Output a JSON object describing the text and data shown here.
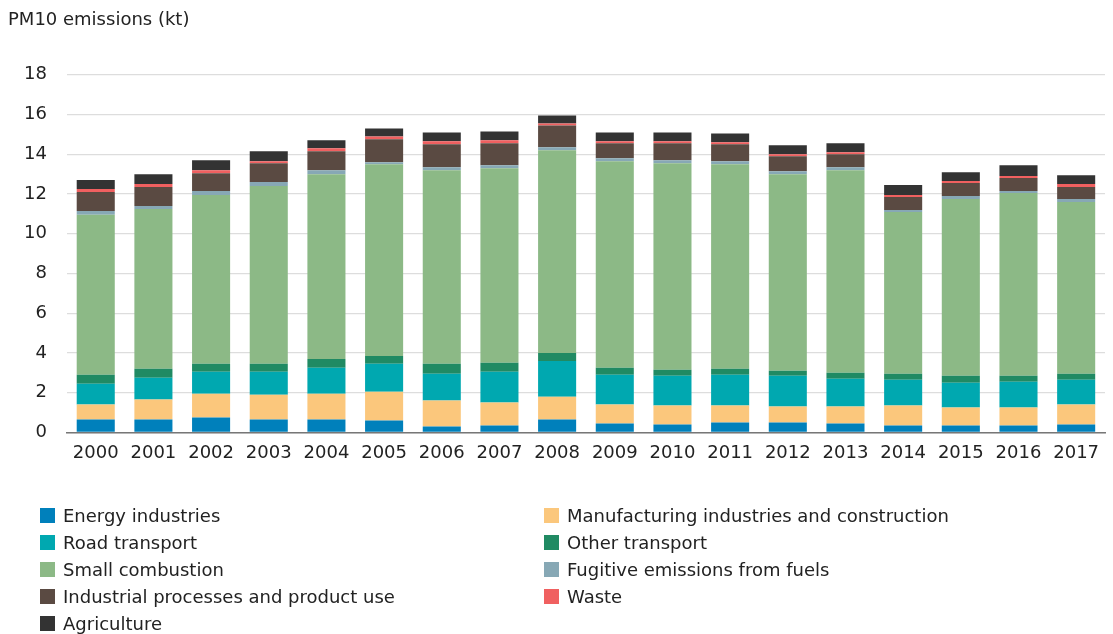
{
  "chart_data": {
    "type": "bar",
    "stacked": true,
    "ylabel": "PM10 emissions (kt)",
    "categories": [
      "2000",
      "2001",
      "2002",
      "2003",
      "2004",
      "2005",
      "2006",
      "2007",
      "2008",
      "2009",
      "2010",
      "2011",
      "2012",
      "2013",
      "2014",
      "2015",
      "2016",
      "2017"
    ],
    "ylim": [
      0,
      18
    ],
    "yticks": [
      0,
      2,
      4,
      6,
      8,
      10,
      12,
      14,
      16,
      18
    ],
    "grid": "y",
    "legend": "bottom",
    "series": [
      {
        "name": "Energy industries",
        "color": "#0080bb",
        "values": [
          0.65,
          0.65,
          0.75,
          0.65,
          0.65,
          0.6,
          0.3,
          0.35,
          0.65,
          0.45,
          0.4,
          0.5,
          0.5,
          0.45,
          0.35,
          0.35,
          0.35,
          0.4
        ]
      },
      {
        "name": "Manufacturing industries and construction",
        "color": "#fbc77c",
        "values": [
          0.75,
          1.0,
          1.2,
          1.25,
          1.3,
          1.45,
          1.3,
          1.15,
          1.15,
          0.95,
          0.95,
          0.85,
          0.8,
          0.85,
          1.0,
          0.9,
          0.9,
          1.0
        ]
      },
      {
        "name": "Road transport",
        "color": "#00a8b0",
        "values": [
          1.05,
          1.1,
          1.1,
          1.15,
          1.3,
          1.4,
          1.35,
          1.55,
          1.8,
          1.5,
          1.5,
          1.55,
          1.55,
          1.4,
          1.3,
          1.25,
          1.3,
          1.25
        ]
      },
      {
        "name": "Other transport",
        "color": "#208a63",
        "values": [
          0.45,
          0.45,
          0.4,
          0.4,
          0.45,
          0.4,
          0.5,
          0.45,
          0.4,
          0.35,
          0.3,
          0.3,
          0.25,
          0.3,
          0.3,
          0.35,
          0.3,
          0.3
        ]
      },
      {
        "name": "Small combustion",
        "color": "#8cb986",
        "values": [
          8.05,
          8.05,
          8.5,
          8.95,
          9.3,
          9.65,
          9.75,
          9.8,
          10.2,
          10.4,
          10.4,
          10.3,
          9.9,
          10.2,
          8.15,
          8.9,
          9.2,
          8.65
        ]
      },
      {
        "name": "Fugitive emissions from fuels",
        "color": "#87a8b5",
        "values": [
          0.2,
          0.15,
          0.2,
          0.2,
          0.2,
          0.1,
          0.15,
          0.15,
          0.15,
          0.15,
          0.15,
          0.15,
          0.15,
          0.15,
          0.1,
          0.15,
          0.1,
          0.15
        ]
      },
      {
        "name": "Industrial processes and product use",
        "color": "#5a4a42",
        "values": [
          0.95,
          0.95,
          0.9,
          0.95,
          0.95,
          1.15,
          1.15,
          1.1,
          1.1,
          0.75,
          0.85,
          0.85,
          0.75,
          0.65,
          0.65,
          0.65,
          0.65,
          0.6
        ]
      },
      {
        "name": "Waste",
        "color": "#f06060",
        "values": [
          0.15,
          0.15,
          0.15,
          0.1,
          0.15,
          0.15,
          0.15,
          0.15,
          0.1,
          0.1,
          0.1,
          0.1,
          0.1,
          0.1,
          0.1,
          0.1,
          0.1,
          0.15
        ]
      },
      {
        "name": "Agriculture",
        "color": "#333333",
        "values": [
          0.45,
          0.5,
          0.5,
          0.5,
          0.4,
          0.4,
          0.45,
          0.45,
          0.4,
          0.45,
          0.45,
          0.45,
          0.45,
          0.45,
          0.5,
          0.45,
          0.55,
          0.45
        ]
      }
    ]
  }
}
